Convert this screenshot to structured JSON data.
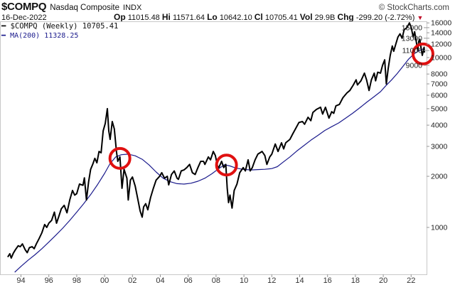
{
  "header": {
    "symbol": "$COMPQ",
    "name": "Nasdaq Composite",
    "exchange": "INDX",
    "brand": "© StockCharts.com",
    "date": "16-Dec-2022",
    "op_label": "Op",
    "op": "11015.48",
    "hi_label": "Hi",
    "hi": "11571.64",
    "lo_label": "Lo",
    "lo": "10642.10",
    "cl_label": "Cl",
    "cl": "10705.41",
    "vol_label": "Vol",
    "vol": "29.9B",
    "chg_label": "Chg",
    "chg": "-299.20 (-2.72%)",
    "chg_icon": "triangle-down"
  },
  "legend": {
    "price": "$COMPQ (Weekly) 10705.41",
    "ma": "MA(200) 11328.25"
  },
  "chart_data": {
    "type": "line",
    "yscale": "log",
    "ylim": [
      560,
      17500
    ],
    "xlim": [
      1992.5,
      2023.7
    ],
    "grid": false,
    "y_ticks": [
      "16000",
      "15000",
      "14000",
      "13000",
      "12000",
      "11000",
      "10000",
      "9000",
      "8000",
      "7000",
      "6000",
      "5000",
      "4000",
      "3000",
      "2000",
      "1000"
    ],
    "x_ticks": [
      "94",
      "96",
      "98",
      "00",
      "02",
      "04",
      "06",
      "08",
      "10",
      "12",
      "14",
      "16",
      "18",
      "20",
      "22"
    ],
    "colors": {
      "price": "#000000",
      "ma": "#1a1a8c",
      "highlight": "#e01010"
    },
    "series": [
      {
        "name": "$COMPQ (Weekly)",
        "points": [
          [
            1993.05,
            670
          ],
          [
            1993.2,
            700
          ],
          [
            1993.3,
            660
          ],
          [
            1993.45,
            705
          ],
          [
            1993.6,
            740
          ],
          [
            1993.8,
            780
          ],
          [
            1993.95,
            770
          ],
          [
            1994.1,
            800
          ],
          [
            1994.3,
            740
          ],
          [
            1994.45,
            710
          ],
          [
            1994.6,
            760
          ],
          [
            1994.8,
            770
          ],
          [
            1994.95,
            750
          ],
          [
            1995.1,
            800
          ],
          [
            1995.3,
            860
          ],
          [
            1995.5,
            930
          ],
          [
            1995.7,
            1040
          ],
          [
            1995.85,
            1000
          ],
          [
            1996.0,
            1060
          ],
          [
            1996.2,
            1100
          ],
          [
            1996.4,
            1230
          ],
          [
            1996.55,
            1060
          ],
          [
            1996.7,
            1150
          ],
          [
            1996.9,
            1290
          ],
          [
            1997.1,
            1350
          ],
          [
            1997.3,
            1220
          ],
          [
            1997.5,
            1450
          ],
          [
            1997.7,
            1650
          ],
          [
            1997.85,
            1550
          ],
          [
            1998.0,
            1580
          ],
          [
            1998.2,
            1800
          ],
          [
            1998.45,
            1770
          ],
          [
            1998.55,
            1960
          ],
          [
            1998.7,
            1450
          ],
          [
            1998.85,
            1850
          ],
          [
            1999.0,
            2200
          ],
          [
            1999.15,
            2350
          ],
          [
            1999.3,
            2550
          ],
          [
            1999.45,
            2400
          ],
          [
            1999.6,
            2800
          ],
          [
            1999.75,
            2750
          ],
          [
            1999.9,
            3700
          ],
          [
            2000.05,
            4100
          ],
          [
            2000.2,
            5000
          ],
          [
            2000.3,
            3700
          ],
          [
            2000.4,
            3300
          ],
          [
            2000.55,
            4200
          ],
          [
            2000.7,
            3800
          ],
          [
            2000.85,
            2800
          ],
          [
            2000.95,
            2450
          ],
          [
            2001.1,
            2600
          ],
          [
            2001.25,
            1700
          ],
          [
            2001.4,
            2200
          ],
          [
            2001.6,
            1950
          ],
          [
            2001.7,
            1450
          ],
          [
            2001.85,
            1900
          ],
          [
            2002.0,
            1980
          ],
          [
            2002.2,
            1750
          ],
          [
            2002.4,
            1450
          ],
          [
            2002.55,
            1250
          ],
          [
            2002.7,
            1150
          ],
          [
            2002.8,
            1320
          ],
          [
            2002.95,
            1380
          ],
          [
            2003.1,
            1270
          ],
          [
            2003.3,
            1500
          ],
          [
            2003.5,
            1700
          ],
          [
            2003.7,
            1900
          ],
          [
            2003.95,
            2000
          ],
          [
            2004.1,
            2100
          ],
          [
            2004.3,
            1950
          ],
          [
            2004.5,
            2000
          ],
          [
            2004.6,
            1780
          ],
          [
            2004.8,
            2050
          ],
          [
            2005.0,
            2150
          ],
          [
            2005.2,
            1950
          ],
          [
            2005.3,
            1920
          ],
          [
            2005.5,
            2150
          ],
          [
            2005.7,
            2180
          ],
          [
            2005.9,
            2250
          ],
          [
            2006.1,
            2350
          ],
          [
            2006.3,
            2100
          ],
          [
            2006.5,
            2050
          ],
          [
            2006.7,
            2250
          ],
          [
            2006.9,
            2450
          ],
          [
            2007.1,
            2450
          ],
          [
            2007.2,
            2350
          ],
          [
            2007.45,
            2600
          ],
          [
            2007.6,
            2500
          ],
          [
            2007.8,
            2800
          ],
          [
            2007.95,
            2650
          ],
          [
            2008.1,
            2300
          ],
          [
            2008.2,
            2250
          ],
          [
            2008.4,
            2450
          ],
          [
            2008.55,
            2250
          ],
          [
            2008.7,
            2350
          ],
          [
            2008.8,
            1700
          ],
          [
            2008.9,
            1400
          ],
          [
            2009.0,
            1550
          ],
          [
            2009.15,
            1300
          ],
          [
            2009.3,
            1650
          ],
          [
            2009.5,
            1800
          ],
          [
            2009.7,
            2100
          ],
          [
            2009.95,
            2250
          ],
          [
            2010.1,
            2150
          ],
          [
            2010.3,
            2500
          ],
          [
            2010.45,
            2150
          ],
          [
            2010.6,
            2250
          ],
          [
            2010.8,
            2500
          ],
          [
            2011.0,
            2700
          ],
          [
            2011.3,
            2800
          ],
          [
            2011.5,
            2650
          ],
          [
            2011.65,
            2350
          ],
          [
            2011.85,
            2600
          ],
          [
            2012.0,
            2700
          ],
          [
            2012.25,
            3100
          ],
          [
            2012.45,
            2800
          ],
          [
            2012.7,
            3150
          ],
          [
            2012.85,
            2900
          ],
          [
            2013.0,
            3150
          ],
          [
            2013.3,
            3300
          ],
          [
            2013.5,
            3550
          ],
          [
            2013.7,
            3800
          ],
          [
            2013.95,
            4150
          ],
          [
            2014.2,
            4200
          ],
          [
            2014.35,
            4050
          ],
          [
            2014.6,
            4450
          ],
          [
            2014.8,
            4250
          ],
          [
            2014.95,
            4750
          ],
          [
            2015.2,
            4950
          ],
          [
            2015.5,
            5100
          ],
          [
            2015.65,
            4650
          ],
          [
            2015.85,
            5100
          ],
          [
            2016.1,
            4400
          ],
          [
            2016.3,
            4800
          ],
          [
            2016.45,
            4700
          ],
          [
            2016.6,
            5200
          ],
          [
            2016.85,
            5300
          ],
          [
            2017.1,
            5800
          ],
          [
            2017.4,
            6200
          ],
          [
            2017.6,
            6400
          ],
          [
            2017.85,
            6900
          ],
          [
            2018.05,
            7400
          ],
          [
            2018.15,
            6900
          ],
          [
            2018.4,
            7300
          ],
          [
            2018.65,
            8100
          ],
          [
            2018.8,
            7400
          ],
          [
            2018.98,
            6400
          ],
          [
            2019.15,
            7400
          ],
          [
            2019.35,
            8100
          ],
          [
            2019.45,
            7300
          ],
          [
            2019.6,
            8200
          ],
          [
            2019.8,
            8100
          ],
          [
            2019.95,
            9000
          ],
          [
            2020.1,
            9700
          ],
          [
            2020.22,
            7000
          ],
          [
            2020.35,
            8600
          ],
          [
            2020.5,
            10300
          ],
          [
            2020.65,
            11700
          ],
          [
            2020.75,
            10900
          ],
          [
            2020.9,
            12000
          ],
          [
            2021.05,
            13200
          ],
          [
            2021.2,
            13800
          ],
          [
            2021.35,
            13000
          ],
          [
            2021.5,
            14600
          ],
          [
            2021.7,
            15000
          ],
          [
            2021.88,
            16000
          ],
          [
            2022.0,
            15100
          ],
          [
            2022.15,
            13200
          ],
          [
            2022.25,
            14200
          ],
          [
            2022.4,
            12000
          ],
          [
            2022.47,
            11000
          ],
          [
            2022.55,
            12500
          ],
          [
            2022.62,
            12800
          ],
          [
            2022.72,
            11300
          ],
          [
            2022.8,
            10300
          ],
          [
            2022.88,
            11000
          ],
          [
            2022.93,
            11500
          ],
          [
            2022.96,
            10705
          ]
        ]
      },
      {
        "name": "MA(200)",
        "points": [
          [
            1993.55,
            545
          ],
          [
            1994.0,
            590
          ],
          [
            1994.5,
            640
          ],
          [
            1995.0,
            690
          ],
          [
            1995.5,
            750
          ],
          [
            1996.0,
            820
          ],
          [
            1996.5,
            900
          ],
          [
            1997.0,
            990
          ],
          [
            1997.5,
            1100
          ],
          [
            1998.0,
            1230
          ],
          [
            1998.5,
            1380
          ],
          [
            1999.0,
            1560
          ],
          [
            1999.5,
            1790
          ],
          [
            2000.0,
            2080
          ],
          [
            2000.4,
            2380
          ],
          [
            2000.8,
            2600
          ],
          [
            2001.2,
            2680
          ],
          [
            2001.7,
            2700
          ],
          [
            2002.2,
            2640
          ],
          [
            2002.7,
            2520
          ],
          [
            2003.2,
            2330
          ],
          [
            2003.7,
            2120
          ],
          [
            2004.2,
            1950
          ],
          [
            2004.7,
            1860
          ],
          [
            2005.2,
            1810
          ],
          [
            2005.7,
            1800
          ],
          [
            2006.2,
            1820
          ],
          [
            2006.7,
            1870
          ],
          [
            2007.2,
            1950
          ],
          [
            2007.7,
            2070
          ],
          [
            2008.2,
            2220
          ],
          [
            2008.6,
            2340
          ],
          [
            2009.0,
            2300
          ],
          [
            2009.4,
            2240
          ],
          [
            2009.9,
            2200
          ],
          [
            2010.5,
            2180
          ],
          [
            2011.0,
            2190
          ],
          [
            2011.5,
            2200
          ],
          [
            2012.0,
            2220
          ],
          [
            2012.4,
            2280
          ],
          [
            2012.8,
            2420
          ],
          [
            2013.3,
            2600
          ],
          [
            2013.8,
            2820
          ],
          [
            2014.3,
            3030
          ],
          [
            2014.8,
            3260
          ],
          [
            2015.3,
            3480
          ],
          [
            2015.8,
            3720
          ],
          [
            2016.3,
            3920
          ],
          [
            2016.8,
            4120
          ],
          [
            2017.3,
            4400
          ],
          [
            2017.8,
            4700
          ],
          [
            2018.3,
            5050
          ],
          [
            2018.8,
            5450
          ],
          [
            2019.3,
            5850
          ],
          [
            2019.8,
            6300
          ],
          [
            2020.2,
            6850
          ],
          [
            2020.6,
            7400
          ],
          [
            2021.0,
            8050
          ],
          [
            2021.4,
            8850
          ],
          [
            2021.8,
            9750
          ],
          [
            2022.2,
            10500
          ],
          [
            2022.5,
            10900
          ],
          [
            2022.75,
            11150
          ],
          [
            2022.96,
            11328
          ]
        ]
      }
    ],
    "highlights": [
      [
        2001.1,
        2550
      ],
      [
        2008.75,
        2330
      ],
      [
        2022.85,
        10500
      ]
    ]
  }
}
